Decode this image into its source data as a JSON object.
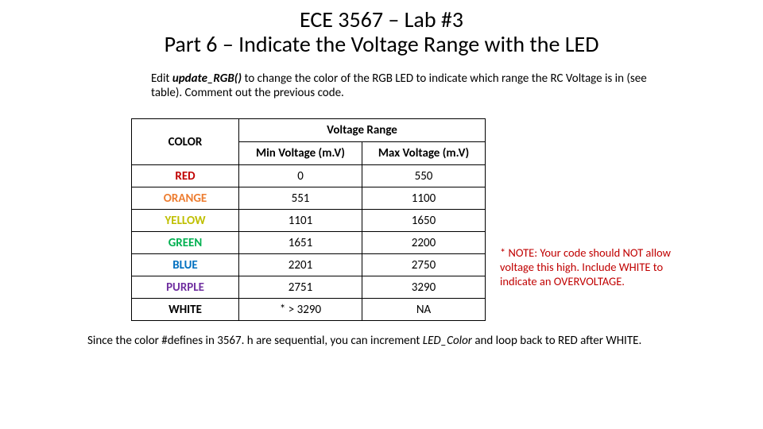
{
  "title": {
    "course": "ECE 3567 – Lab #3",
    "subtitle": "Part 6 – Indicate the Voltage Range with the LED"
  },
  "instruction": {
    "prefix": "Edit ",
    "fn": "update_RGB()",
    "rest": " to change the color of the RGB LED to indicate which range the RC Voltage is in (see table).  Comment out the previous code."
  },
  "table": {
    "header_color": "COLOR",
    "header_group": "Voltage Range",
    "header_min": "Min Voltage (m.V)",
    "header_max": "Max Voltage (m.V)",
    "rows": [
      {
        "name": "RED",
        "color": "#c00000",
        "min": "0",
        "max": "550"
      },
      {
        "name": "ORANGE",
        "color": "#ed7d31",
        "min": "551",
        "max": "1100"
      },
      {
        "name": "YELLOW",
        "color": "#bfbf00",
        "min": "1101",
        "max": "1650"
      },
      {
        "name": "GREEN",
        "color": "#00b050",
        "min": "1651",
        "max": "2200"
      },
      {
        "name": "BLUE",
        "color": "#0070c0",
        "min": "2201",
        "max": "2750"
      },
      {
        "name": "PURPLE",
        "color": "#7030a0",
        "min": "2751",
        "max": "3290"
      },
      {
        "name": "WHITE",
        "color": "#000000",
        "min": "* > 3290",
        "max": "NA"
      }
    ]
  },
  "note": "* NOTE: Your code should NOT allow voltage this high. Include WHITE to indicate an OVERVOLTAGE.",
  "footer": {
    "p1": "Since the color #defines in 3567. h are sequential, you can increment ",
    "var": "LED_Color",
    "p2": " and loop back to RED after WHITE."
  },
  "colors": {
    "note_color": "#c00000",
    "text": "#000000",
    "background": "#ffffff",
    "table_border": "#000000"
  },
  "fonts": {
    "title_size_pt": 21,
    "body_size_pt": 11,
    "family": "Calibri"
  }
}
